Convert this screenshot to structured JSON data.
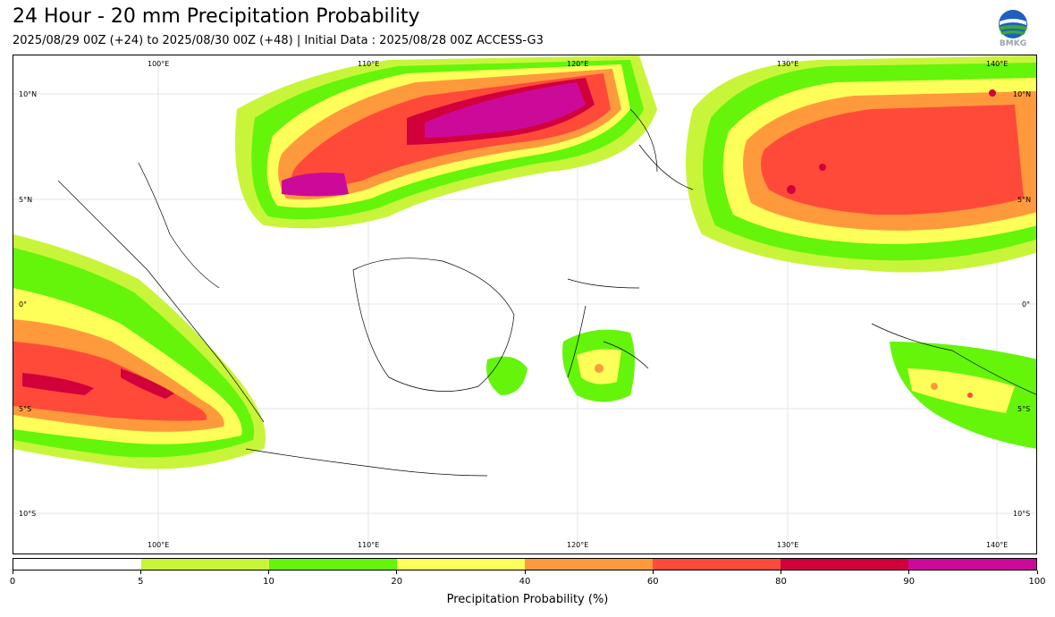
{
  "header": {
    "title": "24 Hour - 20 mm Precipitation Probability",
    "subtitle": "2025/08/29 00Z (+24) to 2025/08/30 00Z (+48) | Initial Data : 2025/08/28 00Z ACCESS-G3",
    "logo_text": "BMKG"
  },
  "map": {
    "lon_labels_top": [
      "100°E",
      "110°E",
      "120°E",
      "130°E",
      "140°E"
    ],
    "lon_labels_bottom": [
      "100°E",
      "110°E",
      "120°E",
      "130°E",
      "140°E"
    ],
    "lat_labels_left": [
      "10°N",
      "5°N",
      "0°",
      "5°S",
      "10°S"
    ],
    "lat_labels_right": [
      "10°N",
      "5°N",
      "0°",
      "5°S",
      "10°S"
    ]
  },
  "colorbar": {
    "label": "Precipitation Probability (%)",
    "ticks": [
      "0",
      "5",
      "10",
      "20",
      "40",
      "60",
      "80",
      "90",
      "100"
    ],
    "colors": [
      "#ffffff",
      "#c8f53a",
      "#64f50a",
      "#ffff5a",
      "#ff9a3c",
      "#ff4a3a",
      "#d2003a",
      "#cc0a9a"
    ]
  }
}
